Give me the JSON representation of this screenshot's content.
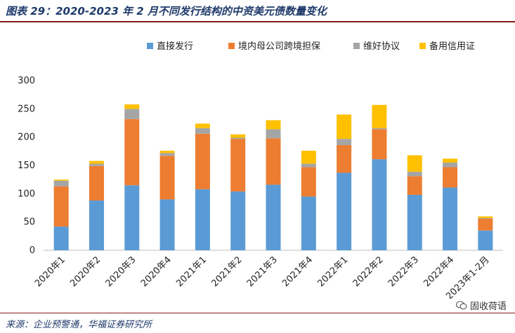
{
  "title": "图表 29：2020-2023 年 2 月不同发行结构的中资美元债数量变化",
  "source": "来源：企业预警通，华福证券研究所",
  "watermark": "固收荷语",
  "colors": {
    "title": "#1f3a6b",
    "rule": "#8b1a1a",
    "series": [
      "#5b9bd5",
      "#ed7d31",
      "#a5a5a5",
      "#ffc000"
    ]
  },
  "chart_data": {
    "type": "bar",
    "stacked": true,
    "categories": [
      "2020年1",
      "2020年2",
      "2020年3",
      "2020年4",
      "2021年1",
      "2021年2",
      "2021年3",
      "2021年4",
      "2022年1",
      "2022年2",
      "2022年3",
      "2022年4",
      "2023年1-2月"
    ],
    "series": [
      {
        "name": "直接发行",
        "values": [
          42,
          88,
          115,
          90,
          108,
          104,
          116,
          95,
          137,
          161,
          98,
          111,
          35
        ]
      },
      {
        "name": "境内母公司跨境担保",
        "values": [
          71,
          61,
          117,
          77,
          98,
          93,
          82,
          52,
          49,
          53,
          33,
          36,
          21
        ]
      },
      {
        "name": "维好协议",
        "values": [
          10,
          4,
          18,
          5,
          10,
          2,
          16,
          6,
          11,
          2,
          8,
          8,
          1
        ]
      },
      {
        "name": "备用信用证",
        "values": [
          2,
          5,
          8,
          4,
          8,
          6,
          16,
          23,
          43,
          41,
          29,
          7,
          3
        ]
      }
    ],
    "ylim": [
      0,
      300
    ],
    "yticks": [
      0,
      50,
      100,
      150,
      200,
      250,
      300
    ],
    "legend_position": "top-right",
    "grid": false
  }
}
